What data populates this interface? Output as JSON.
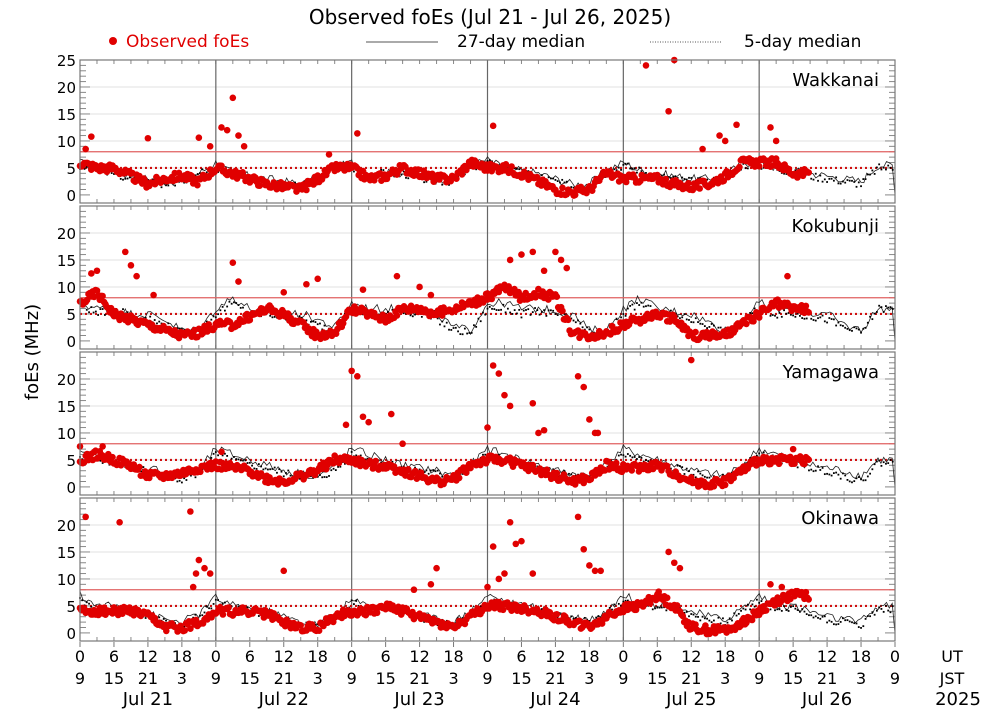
{
  "chart_data": {
    "type": "scatter",
    "title": "Observed foEs (Jul 21 - Jul 26, 2025)",
    "ylabel": "foEs (MHz)",
    "ylim": [
      -1.5,
      25
    ],
    "yticks": [
      0,
      5,
      10,
      15,
      20,
      25
    ],
    "reference_lines": {
      "solid_red": 8,
      "dotted_red": 5
    },
    "legend": {
      "placement": "top",
      "entries": [
        {
          "label": "Observed foEs",
          "style": "red-dot",
          "color": "#e00000"
        },
        {
          "label": "27-day median",
          "style": "solid-line",
          "color": "#000000"
        },
        {
          "label": "5-day median",
          "style": "dotted-line",
          "color": "#000000"
        }
      ]
    },
    "x_axis": {
      "ut_ticks": [
        "0",
        "6",
        "12",
        "18",
        "0",
        "6",
        "12",
        "18",
        "0",
        "6",
        "12",
        "18",
        "0",
        "6",
        "12",
        "18",
        "0",
        "6",
        "12",
        "18",
        "0",
        "6",
        "12",
        "18",
        "0"
      ],
      "jst_ticks": [
        "9",
        "15",
        "21",
        "3",
        "9",
        "15",
        "21",
        "3",
        "9",
        "15",
        "21",
        "3",
        "9",
        "15",
        "21",
        "3",
        "9",
        "15",
        "21",
        "3",
        "9",
        "15",
        "21",
        "3",
        "9"
      ],
      "ut_label": "UT",
      "jst_label": "JST",
      "days": [
        "Jul 21",
        "Jul 22",
        "Jul 23",
        "Jul 24",
        "Jul 25",
        "Jul 26"
      ],
      "year": "2025",
      "range_hours": [
        0,
        144
      ]
    },
    "series_note": "Observed values approximated at 3-hour resolution plus individual spikes; median curves approximated at 3-hour resolution.",
    "panels": [
      {
        "station": "Wakkanai",
        "observed_3h": [
          6,
          5,
          5,
          3.5,
          2,
          3,
          3.5,
          2.5,
          5,
          4,
          3,
          2,
          1.5,
          1,
          3,
          5,
          5,
          3,
          3.5,
          5,
          4,
          3,
          3,
          6,
          5,
          5,
          4,
          2.5,
          1,
          0.5,
          1,
          4,
          3,
          3,
          3,
          2,
          1.5,
          2,
          3.5,
          6,
          6,
          6,
          4,
          null,
          null,
          null,
          null,
          null
        ],
        "spikes": [
          [
            1,
            8.5
          ],
          [
            2,
            10.8
          ],
          [
            12,
            10.5
          ],
          [
            21,
            10.6
          ],
          [
            23,
            9
          ],
          [
            25,
            12.5
          ],
          [
            26,
            12
          ],
          [
            27,
            18
          ],
          [
            28,
            11
          ],
          [
            29,
            9
          ],
          [
            44,
            7.5
          ],
          [
            49,
            11.4
          ],
          [
            73,
            12.8
          ],
          [
            100,
            24
          ],
          [
            105,
            25
          ],
          [
            104,
            15.5
          ],
          [
            110,
            8.5
          ],
          [
            113,
            11
          ],
          [
            114,
            10
          ],
          [
            116,
            13
          ],
          [
            122,
            12.5
          ],
          [
            123,
            10
          ]
        ],
        "median27_3h": [
          6,
          5,
          4.5,
          3.5,
          3,
          2.5,
          2.5,
          4,
          6,
          4,
          3.5,
          3,
          2.5,
          2,
          3,
          5,
          6,
          4,
          4,
          4,
          3.5,
          3,
          3,
          5.5,
          6.5,
          5,
          4.5,
          4,
          3,
          2,
          2,
          4.5,
          6,
          4.5,
          4,
          3.5,
          3,
          3,
          3.5,
          6,
          6,
          5,
          4.5,
          4,
          3.5,
          3,
          2.5,
          5.5
        ],
        "median5_3h": [
          5.5,
          5,
          4,
          3,
          2.5,
          2,
          2.5,
          4,
          5,
          4,
          3,
          2.5,
          2,
          1.5,
          3,
          5,
          5,
          4,
          4,
          4,
          3,
          2.5,
          2.5,
          5,
          6,
          5,
          4,
          3.5,
          2.5,
          1.5,
          1.5,
          4,
          5.5,
          4.5,
          3.5,
          3,
          2.5,
          2.5,
          3,
          5.5,
          5.5,
          5,
          4,
          3.5,
          3,
          2.5,
          2,
          5
        ]
      },
      {
        "station": "Kokubunji",
        "observed_3h": [
          7,
          9,
          5,
          4,
          3,
          2,
          1,
          1.5,
          3,
          3,
          4.5,
          6,
          5,
          3,
          1,
          1.5,
          6,
          5,
          4,
          6,
          6,
          5,
          6,
          7,
          8,
          10,
          8,
          9,
          8,
          1.5,
          1,
          1.5,
          3,
          4,
          5,
          4,
          1,
          1,
          1,
          3,
          5,
          7,
          6,
          null,
          null,
          null,
          null,
          null
        ],
        "spikes": [
          [
            2,
            12.5
          ],
          [
            3,
            13
          ],
          [
            8,
            16.5
          ],
          [
            9,
            14
          ],
          [
            10,
            12
          ],
          [
            13,
            8.5
          ],
          [
            27,
            14.5
          ],
          [
            28,
            11
          ],
          [
            36,
            9
          ],
          [
            40,
            10.5
          ],
          [
            42,
            11.5
          ],
          [
            50,
            9.5
          ],
          [
            56,
            12
          ],
          [
            60,
            10
          ],
          [
            62,
            8.5
          ],
          [
            72,
            8.8
          ],
          [
            76,
            15
          ],
          [
            78,
            16
          ],
          [
            80,
            16.5
          ],
          [
            82,
            13
          ],
          [
            84,
            16.5
          ],
          [
            85,
            15
          ],
          [
            86,
            13.5
          ],
          [
            125,
            12
          ]
        ],
        "median27_3h": [
          7,
          6,
          6,
          5,
          5,
          4,
          2,
          2,
          6,
          8,
          6,
          5.5,
          5,
          5,
          4,
          2.5,
          7,
          6,
          6,
          6,
          5.5,
          5,
          2.5,
          2,
          7,
          7,
          6,
          6,
          5.5,
          5,
          2,
          2,
          6,
          8,
          6,
          5.5,
          5,
          3.5,
          2,
          4,
          7,
          6,
          6,
          5,
          5,
          3,
          2,
          6
        ],
        "median5_3h": [
          7,
          5,
          6,
          5,
          4,
          3,
          1.5,
          1.5,
          5,
          7,
          5,
          5,
          4.5,
          4,
          3,
          2,
          6,
          5,
          5,
          5.5,
          5,
          4,
          2,
          1.5,
          6,
          6,
          5,
          5.5,
          5,
          4,
          1.5,
          1.5,
          5,
          7,
          5,
          5,
          4,
          3,
          1.5,
          3.5,
          6,
          5,
          5,
          4.5,
          4,
          2.5,
          1.5,
          6
        ]
      },
      {
        "station": "Yamagawa",
        "observed_3h": [
          5,
          6,
          5,
          4,
          2,
          2,
          2.5,
          3.5,
          4,
          3.5,
          3,
          1.5,
          1,
          2,
          3,
          5,
          5,
          4,
          4,
          3,
          2,
          1,
          1.5,
          4,
          5,
          5,
          4,
          3,
          2,
          1,
          1.5,
          4,
          3.5,
          3.5,
          4,
          2.5,
          1,
          0.5,
          1,
          3,
          5,
          5,
          5,
          null,
          null,
          null,
          null,
          null
        ],
        "spikes": [
          [
            0,
            7.5
          ],
          [
            4,
            7.5
          ],
          [
            25,
            6.5
          ],
          [
            47,
            11.5
          ],
          [
            48,
            21.5
          ],
          [
            49,
            20.5
          ],
          [
            50,
            13
          ],
          [
            51,
            12
          ],
          [
            55,
            13.5
          ],
          [
            57,
            8
          ],
          [
            72,
            11
          ],
          [
            73,
            22.5
          ],
          [
            74,
            21
          ],
          [
            75,
            17
          ],
          [
            76,
            15
          ],
          [
            80,
            15.5
          ],
          [
            81,
            10
          ],
          [
            82,
            10.5
          ],
          [
            88,
            20.5
          ],
          [
            89,
            18.5
          ],
          [
            90,
            12.5
          ],
          [
            91,
            10
          ],
          [
            91.5,
            10
          ],
          [
            108,
            23.5
          ],
          [
            126,
            7
          ]
        ],
        "median27_3h": [
          6,
          6,
          5,
          4,
          3.5,
          3,
          2,
          3,
          7,
          6,
          5,
          4,
          3,
          2.5,
          2,
          3.5,
          7,
          6,
          5,
          4,
          3.5,
          3,
          2,
          4,
          7,
          6,
          5,
          4,
          3,
          2.5,
          2,
          4,
          7,
          6,
          5,
          4,
          3,
          2.5,
          2,
          4,
          7,
          6,
          5,
          4,
          3.5,
          3,
          2,
          5
        ],
        "median5_3h": [
          5,
          5,
          4.5,
          3.5,
          3,
          2,
          1.5,
          2.5,
          6,
          5,
          4,
          3.5,
          2.5,
          2,
          1.5,
          3,
          6,
          5,
          4.5,
          3.5,
          3,
          2.5,
          1.5,
          3.5,
          6,
          5,
          4,
          3.5,
          2.5,
          2,
          1.5,
          3.5,
          6,
          5,
          4,
          3.5,
          2.5,
          2,
          1.5,
          3.5,
          6,
          5,
          4.5,
          3.5,
          3,
          2,
          1,
          4.5
        ]
      },
      {
        "station": "Okinawa",
        "observed_3h": [
          4,
          4,
          4,
          4,
          3,
          1,
          1,
          2,
          4,
          4,
          4,
          3.5,
          2,
          1,
          1,
          3,
          4,
          4,
          5,
          4,
          3,
          2,
          1,
          3,
          5,
          5,
          4.5,
          4,
          3,
          2,
          1,
          3,
          4.5,
          5,
          7,
          5,
          1,
          0.5,
          0.5,
          2,
          4,
          6,
          7,
          null,
          null,
          null,
          null,
          null
        ],
        "spikes": [
          [
            1,
            21.5
          ],
          [
            7,
            20.5
          ],
          [
            19.5,
            22.5
          ],
          [
            20,
            8.5
          ],
          [
            20.5,
            11
          ],
          [
            21,
            13.5
          ],
          [
            22,
            12
          ],
          [
            23,
            11
          ],
          [
            36,
            11.5
          ],
          [
            59,
            8
          ],
          [
            62,
            9
          ],
          [
            63,
            12
          ],
          [
            72,
            8.5
          ],
          [
            73,
            16
          ],
          [
            74,
            10
          ],
          [
            75,
            11
          ],
          [
            76,
            20.5
          ],
          [
            77,
            16.5
          ],
          [
            78,
            17
          ],
          [
            80,
            11
          ],
          [
            88,
            21.5
          ],
          [
            89,
            15.5
          ],
          [
            90,
            12.5
          ],
          [
            91,
            11.5
          ],
          [
            92,
            11.5
          ],
          [
            104,
            15
          ],
          [
            105,
            13
          ],
          [
            106,
            12
          ],
          [
            122,
            9
          ],
          [
            124,
            8.5
          ]
        ],
        "median27_3h": [
          7,
          5,
          5,
          4.5,
          3.5,
          2.5,
          2,
          3.5,
          6.5,
          5,
          4.5,
          4,
          3,
          2,
          1.5,
          3.5,
          6,
          5,
          5,
          4.5,
          3.5,
          2.5,
          2,
          4,
          7,
          6,
          5,
          4.5,
          4,
          3,
          2.5,
          4,
          7,
          5.5,
          5.5,
          5,
          4,
          3,
          2.5,
          4.5,
          7,
          5,
          5,
          4,
          3,
          2.5,
          2,
          5
        ],
        "median5_3h": [
          6,
          4.5,
          4.5,
          4,
          3,
          2,
          1.5,
          3,
          6,
          4.5,
          4,
          3.5,
          2.5,
          1.5,
          1,
          3,
          5.5,
          4.5,
          4.5,
          4,
          3,
          2,
          1.5,
          3.5,
          6,
          5,
          4.5,
          4,
          3.5,
          2.5,
          2,
          3.5,
          6,
          5,
          5,
          4.5,
          3.5,
          2.5,
          2,
          4,
          6,
          4.5,
          4.5,
          3.5,
          2.5,
          2,
          1.5,
          4.5
        ]
      }
    ]
  }
}
